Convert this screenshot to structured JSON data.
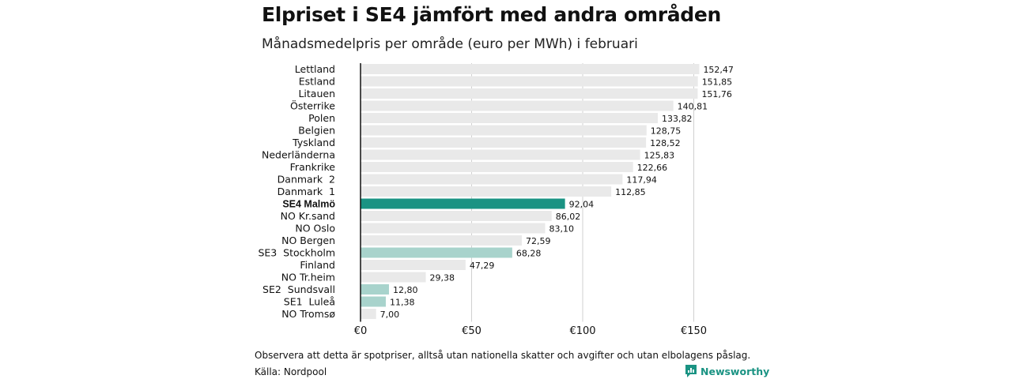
{
  "title": "Elpriset i SE4 jämfört med andra områden",
  "subtitle": "Månadsmedelpris per område (euro per MWh) i februari",
  "note": "Observera att detta är spotpriser, alltså utan nationella skatter och avgifter och utan elbolagens påslag.",
  "source": "Källa: Nordpool",
  "brand": "Newsworthy",
  "colors": {
    "default_bar": "#e9e9e9",
    "highlight_main": "#1a9383",
    "highlight_secondary": "#a8d3cc",
    "axis": "#111111",
    "grid": "#d0d0d0",
    "brand": "#1a9383"
  },
  "chart_data": {
    "type": "bar",
    "orientation": "horizontal",
    "title": "Elpriset i SE4 jämfört med andra områden",
    "subtitle": "Månadsmedelpris per område (euro per MWh) i februari",
    "xlabel": "",
    "ylabel": "",
    "xlim": [
      0,
      160
    ],
    "x_ticks": [
      0,
      50,
      100,
      150
    ],
    "x_tick_labels": [
      "€0",
      "€50",
      "€100",
      "€150"
    ],
    "grid": true,
    "categories": [
      "Lettland",
      "Estland",
      "Litauen",
      "Österrike",
      "Polen",
      "Belgien",
      "Tyskland",
      "Nederländerna",
      "Frankrike",
      "Danmark  2",
      "Danmark  1",
      "SE4 Malmö",
      "NO Kr.sand",
      "NO Oslo",
      "NO Bergen",
      "SE3  Stockholm",
      "Finland",
      "NO Tr.heim",
      "SE2  Sundsvall",
      "SE1  Luleå",
      "NO Tromsø"
    ],
    "values": [
      152.47,
      151.85,
      151.76,
      140.81,
      133.82,
      128.75,
      128.52,
      125.83,
      122.66,
      117.94,
      112.85,
      92.04,
      86.02,
      83.1,
      72.59,
      68.28,
      47.29,
      29.38,
      12.8,
      11.38,
      7.0
    ],
    "value_labels": [
      "152,47",
      "151,85",
      "151,76",
      "140,81",
      "133,82",
      "128,75",
      "128,52",
      "125,83",
      "122,66",
      "117,94",
      "112,85",
      "92,04",
      "86,02",
      "83,10",
      "72,59",
      "68,28",
      "47,29",
      "29,38",
      "12,80",
      "11,38",
      "7,00"
    ],
    "highlight": [
      "none",
      "none",
      "none",
      "none",
      "none",
      "none",
      "none",
      "none",
      "none",
      "none",
      "none",
      "main",
      "none",
      "none",
      "none",
      "secondary",
      "none",
      "none",
      "secondary",
      "secondary",
      "none"
    ]
  }
}
